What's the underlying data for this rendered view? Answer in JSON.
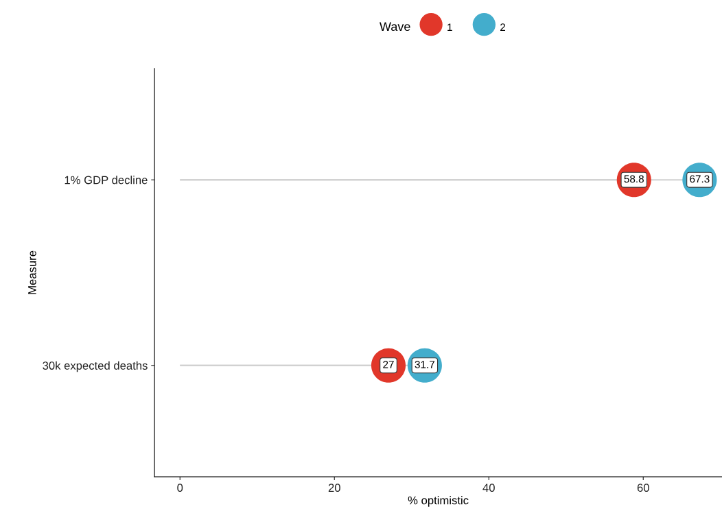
{
  "chart_data": {
    "type": "lollipop",
    "orientation": "horizontal",
    "categories": [
      "1% GDP decline",
      "30k expected deaths"
    ],
    "series": [
      {
        "name": "1",
        "color": "#e1372a",
        "values": [
          58.8,
          27
        ]
      },
      {
        "name": "2",
        "color": "#43adcc",
        "values": [
          67.3,
          31.7
        ]
      }
    ],
    "xlabel": "% optimistic",
    "ylabel": "Measure",
    "legend_title": "Wave",
    "xlim": [
      -3.3,
      70.2
    ],
    "xticks": [
      0,
      20,
      40,
      60
    ],
    "data_labels": true,
    "legend": "top",
    "grid": false,
    "marker": "circle"
  }
}
